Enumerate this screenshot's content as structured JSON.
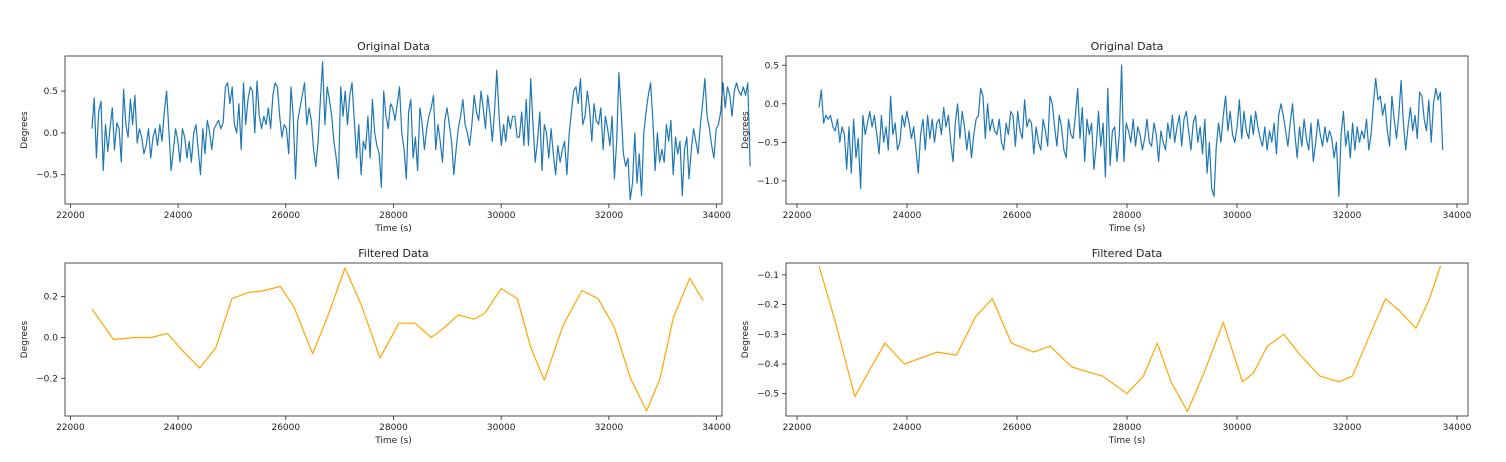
{
  "chart_data": [
    {
      "type": "line",
      "title": "Original Data",
      "xlabel": "Time (s)",
      "ylabel": "Degrees",
      "xlim": [
        21900,
        34100
      ],
      "ylim": [
        -0.85,
        0.92
      ],
      "xticks": [
        22000,
        24000,
        26000,
        28000,
        30000,
        32000,
        34000
      ],
      "xtick_labels": [
        "22000",
        "24000",
        "26000",
        "28000",
        "30000",
        "32000",
        "34000"
      ],
      "yticks": [
        -0.5,
        0.0,
        0.5
      ],
      "ytick_labels": [
        "−0.5",
        "0.0",
        "0.5"
      ],
      "grid": false,
      "color": "#1f77b4",
      "x_start": 22400,
      "x_step": 42,
      "y": [
        0.05,
        0.42,
        -0.3,
        0.25,
        0.38,
        -0.45,
        0.1,
        -0.22,
        0.05,
        0.3,
        -0.2,
        0.12,
        0.05,
        -0.35,
        0.52,
        0.1,
        -0.05,
        0.4,
        0.1,
        0.45,
        -0.12,
        0.05,
        -0.05,
        -0.25,
        -0.15,
        0.05,
        -0.3,
        -0.05,
        0.05,
        -0.15,
        0.1,
        -0.1,
        0.25,
        0.5,
        0.05,
        -0.45,
        -0.2,
        0.05,
        -0.1,
        -0.35,
        0.05,
        -0.05,
        -0.3,
        -0.1,
        -0.35,
        0.0,
        0.1,
        -0.2,
        -0.5,
        0.05,
        -0.25,
        0.15,
        0.02,
        -0.2,
        0.05,
        0.1,
        0.15,
        0.05,
        0.12,
        0.55,
        0.6,
        0.35,
        0.55,
        0.1,
        0.0,
        0.35,
        -0.2,
        0.6,
        0.1,
        0.4,
        0.55,
        0.5,
        0.0,
        0.62,
        0.2,
        0.05,
        0.2,
        0.1,
        0.3,
        0.05,
        0.45,
        0.6,
        0.55,
        0.2,
        -0.05,
        0.1,
        0.05,
        -0.25,
        0.55,
        0.2,
        -0.55,
        0.15,
        0.3,
        0.45,
        0.6,
        0.1,
        0.3,
        0.15,
        -0.2,
        -0.4,
        -0.1,
        0.4,
        0.85,
        0.1,
        0.55,
        0.4,
        0.2,
        -0.1,
        -0.3,
        -0.55,
        0.55,
        0.2,
        0.5,
        0.1,
        0.45,
        0.6,
        0.15,
        -0.3,
        0.1,
        -0.5,
        -0.1,
        -0.2,
        0.2,
        -0.3,
        0.4,
        0.0,
        -0.15,
        -0.25,
        -0.65,
        0.5,
        0.2,
        0.05,
        0.35,
        0.3,
        0.15,
        0.35,
        0.55,
        0.0,
        -0.2,
        -0.55,
        0.25,
        0.4,
        -0.3,
        -0.05,
        -0.45,
        0.3,
        0.12,
        -0.2,
        0.05,
        0.2,
        0.3,
        0.45,
        -0.2,
        0.1,
        -0.1,
        -0.35,
        0.15,
        0.3,
        0.1,
        -0.1,
        -0.5,
        -0.2,
        0.05,
        0.2,
        0.4,
        0.1,
        0.0,
        -0.15,
        0.1,
        0.45,
        0.25,
        0.15,
        0.5,
        0.3,
        0.05,
        0.45,
        0.22,
        -0.1,
        0.25,
        0.75,
        0.2,
        -0.15,
        0.1,
        -0.1,
        0.2,
        0.05,
        0.2,
        0.2,
        -0.05,
        -0.05,
        0.25,
        -0.15,
        0.4,
        -0.15,
        0.65,
        0.1,
        -0.35,
        -0.1,
        0.25,
        -0.45,
        0.1,
        0.0,
        -0.3,
        0.05,
        -0.25,
        -0.5,
        -0.15,
        -0.35,
        -0.2,
        -0.1,
        -0.5,
        0.0,
        0.25,
        0.5,
        0.55,
        0.35,
        0.65,
        0.1,
        0.2,
        0.5,
        0.3,
        -0.1,
        0.35,
        0.15,
        0.1,
        0.3,
        -0.2,
        0.2,
        0.05,
        -0.15,
        0.2,
        -0.55,
        -0.1,
        0.72,
        0.25,
        -0.25,
        -0.4,
        -0.3,
        -0.8,
        -0.6,
        0.0,
        -0.6,
        -0.25,
        -0.75,
        0.0,
        0.25,
        0.45,
        0.6,
        0.15,
        -0.45,
        0.0,
        -0.35,
        -0.2,
        -0.35,
        0.1,
        -0.1,
        0.15,
        -0.5,
        -0.05,
        -0.25,
        -0.1,
        -0.75,
        -0.2,
        -0.05,
        -0.55,
        -0.2,
        0.05,
        -0.1,
        -0.25,
        0.1,
        0.35,
        0.65,
        0.2,
        0.05,
        -0.15,
        -0.3,
        0.05,
        0.1,
        0.25,
        0.6,
        0.3,
        0.55,
        0.45,
        0.2,
        0.5,
        0.6,
        0.5,
        0.45,
        0.55,
        0.45,
        0.6,
        -0.4
      ]
    },
    {
      "type": "line",
      "title": "Original Data",
      "xlabel": "Time (s)",
      "ylabel": "Degrees",
      "xlim": [
        21800,
        34200
      ],
      "ylim": [
        -1.3,
        0.62
      ],
      "xticks": [
        22000,
        24000,
        26000,
        28000,
        30000,
        32000,
        34000
      ],
      "xtick_labels": [
        "22000",
        "24000",
        "26000",
        "28000",
        "30000",
        "32000",
        "34000"
      ],
      "yticks": [
        -1.0,
        -0.5,
        0.0,
        0.5
      ],
      "ytick_labels": [
        "−1.0",
        "−0.5",
        "0.0",
        "0.5"
      ],
      "grid": false,
      "color": "#1f77b4",
      "x_start": 22400,
      "x_step": 42,
      "y": [
        -0.05,
        0.18,
        -0.25,
        -0.15,
        -0.2,
        -0.15,
        -0.3,
        -0.35,
        -0.2,
        -0.5,
        -0.3,
        -0.4,
        -0.85,
        -0.3,
        -0.9,
        -0.2,
        -0.7,
        -0.45,
        -1.1,
        -0.15,
        -0.4,
        -0.25,
        -0.1,
        -0.3,
        -0.15,
        -0.4,
        -0.65,
        -0.15,
        -0.5,
        -0.3,
        -0.6,
        0.1,
        -0.4,
        -0.25,
        -0.6,
        -0.5,
        -0.15,
        -0.3,
        -0.1,
        -0.25,
        -0.45,
        -0.3,
        -0.6,
        -0.9,
        -0.4,
        -0.2,
        -0.6,
        -0.15,
        -0.45,
        -0.2,
        -0.5,
        -0.25,
        -0.2,
        -0.4,
        -0.05,
        -0.3,
        -0.15,
        -0.5,
        -0.75,
        -0.25,
        0.0,
        -0.45,
        -0.1,
        -0.3,
        -0.6,
        -0.35,
        -0.7,
        -0.4,
        -0.2,
        -0.15,
        0.2,
        0.1,
        -0.45,
        0.0,
        -0.35,
        -0.2,
        -0.35,
        -0.4,
        -0.2,
        -0.5,
        -0.6,
        -0.25,
        -0.4,
        -0.1,
        -0.15,
        -0.55,
        -0.1,
        -0.35,
        -0.45,
        0.05,
        -0.3,
        -0.2,
        -0.25,
        -0.65,
        -0.3,
        -0.5,
        -0.6,
        -0.2,
        -0.35,
        -0.55,
        0.1,
        0.0,
        -0.3,
        -0.55,
        -0.15,
        -0.3,
        -0.6,
        -0.7,
        -0.2,
        -0.4,
        -0.45,
        -0.15,
        0.2,
        -0.45,
        -0.05,
        -0.75,
        -0.2,
        -0.4,
        -0.25,
        -0.85,
        -0.55,
        -0.1,
        -0.55,
        -0.25,
        -0.95,
        0.2,
        -0.8,
        -0.35,
        -0.3,
        -0.75,
        -0.4,
        0.5,
        -0.75,
        -0.25,
        -0.35,
        -0.5,
        -0.2,
        -0.55,
        -0.3,
        -0.4,
        -0.6,
        -0.45,
        -0.2,
        -0.5,
        -0.55,
        -0.25,
        -0.4,
        -0.75,
        -0.35,
        -0.5,
        -0.6,
        -0.25,
        -0.45,
        -0.15,
        -0.5,
        -0.3,
        -0.15,
        -0.55,
        -0.2,
        -0.1,
        -0.35,
        -0.6,
        -0.25,
        -0.15,
        -0.5,
        -0.3,
        -0.65,
        -0.2,
        -0.9,
        -0.5,
        -1.1,
        -1.2,
        -0.55,
        -0.25,
        -0.5,
        -0.15,
        0.1,
        -0.35,
        -0.1,
        -0.4,
        -0.5,
        -0.3,
        0.05,
        -0.45,
        -0.1,
        -0.35,
        -0.45,
        -0.15,
        -0.4,
        -0.1,
        -0.3,
        -0.45,
        -0.55,
        -0.3,
        -0.6,
        -0.35,
        -0.5,
        -0.25,
        -0.65,
        -0.15,
        0.0,
        -0.15,
        -0.35,
        -0.55,
        -0.25,
        0.0,
        -0.4,
        -0.7,
        -0.3,
        -0.55,
        -0.2,
        -0.45,
        -0.6,
        -0.25,
        -0.75,
        -0.5,
        -0.2,
        -0.4,
        -0.55,
        -0.3,
        -0.5,
        -0.35,
        -0.45,
        -0.7,
        -0.5,
        -1.2,
        -0.4,
        -0.1,
        -0.55,
        -0.35,
        -0.7,
        -0.25,
        -0.6,
        -0.3,
        -0.5,
        -0.35,
        -0.45,
        -0.2,
        -0.6,
        -0.4,
        0.0,
        0.33,
        0.05,
        0.1,
        -0.15,
        0.0,
        -0.35,
        -0.55,
        0.1,
        -0.2,
        -0.45,
        -0.15,
        0.3,
        -0.25,
        -0.6,
        -0.3,
        -0.05,
        -0.35,
        -0.15,
        -0.45,
        0.15,
        0.1,
        -0.2,
        -0.35,
        0.05,
        -0.5,
        0.0,
        0.2,
        0.05,
        0.15,
        -0.6
      ]
    },
    {
      "type": "line",
      "title": "Filtered Data",
      "xlabel": "Time (s)",
      "ylabel": "Degrees",
      "xlim": [
        21900,
        34100
      ],
      "ylim": [
        -0.385,
        0.365
      ],
      "xticks": [
        22000,
        24000,
        26000,
        28000,
        30000,
        32000,
        34000
      ],
      "xtick_labels": [
        "22000",
        "24000",
        "26000",
        "28000",
        "30000",
        "32000",
        "34000"
      ],
      "yticks": [
        -0.2,
        0.0,
        0.2
      ],
      "ytick_labels": [
        "−0.2",
        "0.0",
        "0.2"
      ],
      "grid": false,
      "color": "#ffa500",
      "points": [
        [
          22400,
          0.14
        ],
        [
          22800,
          -0.01
        ],
        [
          23200,
          0.0
        ],
        [
          23500,
          0.0
        ],
        [
          23800,
          0.02
        ],
        [
          24100,
          -0.07
        ],
        [
          24400,
          -0.15
        ],
        [
          24700,
          -0.05
        ],
        [
          25000,
          0.19
        ],
        [
          25300,
          0.22
        ],
        [
          25600,
          0.23
        ],
        [
          25900,
          0.25
        ],
        [
          26150,
          0.15
        ],
        [
          26500,
          -0.08
        ],
        [
          26800,
          0.12
        ],
        [
          27100,
          0.34
        ],
        [
          27400,
          0.16
        ],
        [
          27750,
          -0.1
        ],
        [
          28100,
          0.07
        ],
        [
          28400,
          0.07
        ],
        [
          28700,
          0.0
        ],
        [
          28950,
          0.05
        ],
        [
          29200,
          0.11
        ],
        [
          29500,
          0.09
        ],
        [
          29700,
          0.12
        ],
        [
          30000,
          0.24
        ],
        [
          30300,
          0.19
        ],
        [
          30550,
          -0.05
        ],
        [
          30800,
          -0.21
        ],
        [
          31150,
          0.06
        ],
        [
          31500,
          0.23
        ],
        [
          31800,
          0.19
        ],
        [
          32100,
          0.05
        ],
        [
          32400,
          -0.2
        ],
        [
          32700,
          -0.36
        ],
        [
          32950,
          -0.2
        ],
        [
          33200,
          0.1
        ],
        [
          33500,
          0.29
        ],
        [
          33750,
          0.18
        ]
      ]
    },
    {
      "type": "line",
      "title": "Filtered Data",
      "xlabel": "Time (s)",
      "ylabel": "Degrees",
      "xlim": [
        21800,
        34200
      ],
      "ylim": [
        -0.575,
        -0.06
      ],
      "xticks": [
        22000,
        24000,
        26000,
        28000,
        30000,
        32000,
        34000
      ],
      "xtick_labels": [
        "22000",
        "24000",
        "26000",
        "28000",
        "30000",
        "32000",
        "34000"
      ],
      "yticks": [
        -0.5,
        -0.4,
        -0.3,
        -0.2,
        -0.1
      ],
      "ytick_labels": [
        "−0.5",
        "−0.4",
        "−0.3",
        "−0.2",
        "−0.1"
      ],
      "grid": false,
      "color": "#ffa500",
      "points": [
        [
          22400,
          -0.07
        ],
        [
          22700,
          -0.26
        ],
        [
          23050,
          -0.51
        ],
        [
          23350,
          -0.41
        ],
        [
          23600,
          -0.33
        ],
        [
          23950,
          -0.4
        ],
        [
          24250,
          -0.38
        ],
        [
          24550,
          -0.36
        ],
        [
          24900,
          -0.37
        ],
        [
          25250,
          -0.24
        ],
        [
          25550,
          -0.18
        ],
        [
          25900,
          -0.33
        ],
        [
          26300,
          -0.36
        ],
        [
          26600,
          -0.34
        ],
        [
          27000,
          -0.41
        ],
        [
          27350,
          -0.43
        ],
        [
          27550,
          -0.44
        ],
        [
          28000,
          -0.5
        ],
        [
          28300,
          -0.44
        ],
        [
          28550,
          -0.33
        ],
        [
          28800,
          -0.46
        ],
        [
          29100,
          -0.56
        ],
        [
          29400,
          -0.43
        ],
        [
          29750,
          -0.26
        ],
        [
          30100,
          -0.46
        ],
        [
          30300,
          -0.43
        ],
        [
          30550,
          -0.34
        ],
        [
          30850,
          -0.3
        ],
        [
          31150,
          -0.37
        ],
        [
          31500,
          -0.44
        ],
        [
          31850,
          -0.46
        ],
        [
          32100,
          -0.44
        ],
        [
          32350,
          -0.33
        ],
        [
          32700,
          -0.18
        ],
        [
          32950,
          -0.22
        ],
        [
          33250,
          -0.28
        ],
        [
          33500,
          -0.18
        ],
        [
          33700,
          -0.07
        ]
      ]
    }
  ]
}
